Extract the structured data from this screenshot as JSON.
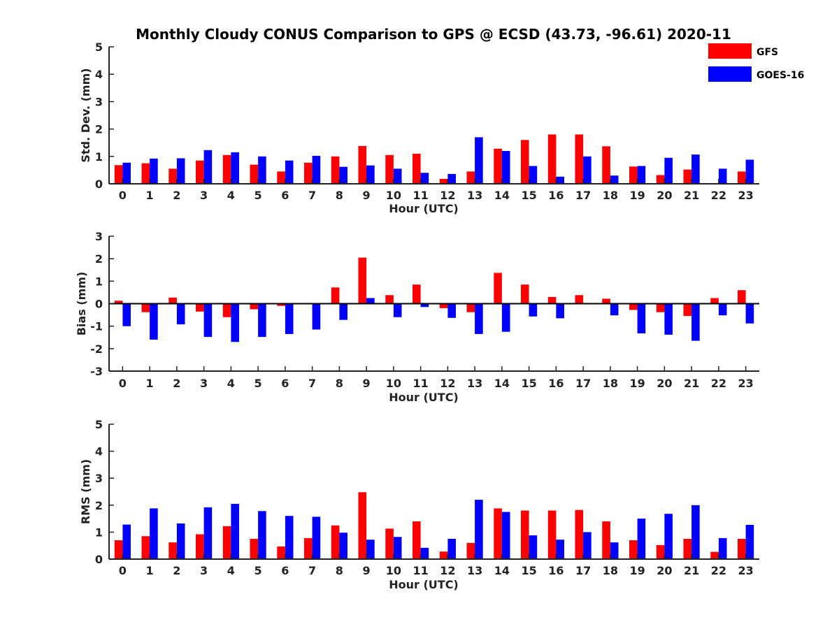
{
  "figure": {
    "title": "Monthly Cloudy CONUS Comparison to GPS @ ECSD (43.73, -96.61) 2020-11"
  },
  "legend": {
    "position": "top-right",
    "items": [
      {
        "label": "GFS",
        "color": "#ff0000"
      },
      {
        "label": "GOES-16",
        "color": "#0000ff"
      }
    ]
  },
  "chart_data": [
    {
      "type": "bar",
      "xlabel": "Hour (UTC)",
      "ylabel": "Std. Dev. (mm)",
      "ylim": [
        0,
        5
      ],
      "yticks": [
        0,
        1,
        2,
        3,
        4,
        5
      ],
      "categories": [
        "0",
        "1",
        "2",
        "3",
        "4",
        "5",
        "6",
        "7",
        "8",
        "9",
        "10",
        "11",
        "12",
        "13",
        "14",
        "15",
        "16",
        "17",
        "18",
        "19",
        "20",
        "21",
        "22",
        "23"
      ],
      "series": [
        {
          "name": "GFS",
          "color": "#ff0000",
          "values": [
            0.68,
            0.75,
            0.55,
            0.85,
            1.05,
            0.7,
            0.45,
            0.77,
            1.0,
            1.38,
            1.05,
            1.1,
            0.18,
            0.45,
            1.28,
            1.6,
            1.8,
            1.8,
            1.37,
            0.63,
            0.32,
            0.52,
            0.02,
            0.45
          ]
        },
        {
          "name": "GOES-16",
          "color": "#0000ff",
          "values": [
            0.77,
            0.92,
            0.93,
            1.23,
            1.15,
            1.0,
            0.85,
            1.02,
            0.62,
            0.67,
            0.55,
            0.4,
            0.36,
            1.7,
            1.2,
            0.65,
            0.26,
            1.0,
            0.3,
            0.65,
            0.95,
            1.07,
            0.55,
            0.88
          ]
        }
      ]
    },
    {
      "type": "bar",
      "xlabel": "Hour (UTC)",
      "ylabel": "Bias (mm)",
      "ylim": [
        -3,
        3
      ],
      "yticks": [
        -3,
        -2,
        -1,
        0,
        1,
        2,
        3
      ],
      "categories": [
        "0",
        "1",
        "2",
        "3",
        "4",
        "5",
        "6",
        "7",
        "8",
        "9",
        "10",
        "11",
        "12",
        "13",
        "14",
        "15",
        "16",
        "17",
        "18",
        "19",
        "20",
        "21",
        "22",
        "23"
      ],
      "series": [
        {
          "name": "GFS",
          "color": "#ff0000",
          "values": [
            0.13,
            -0.38,
            0.27,
            -0.35,
            -0.6,
            -0.25,
            -0.1,
            0.03,
            0.72,
            2.05,
            0.38,
            0.85,
            -0.2,
            -0.38,
            1.37,
            0.85,
            0.3,
            0.38,
            0.22,
            -0.28,
            -0.38,
            -0.55,
            0.25,
            0.6
          ]
        },
        {
          "name": "GOES-16",
          "color": "#0000ff",
          "values": [
            -1.0,
            -1.6,
            -0.92,
            -1.48,
            -1.7,
            -1.48,
            -1.35,
            -1.15,
            -0.72,
            0.25,
            -0.6,
            -0.15,
            -0.63,
            -1.35,
            -1.25,
            -0.57,
            -0.65,
            0.02,
            -0.52,
            -1.32,
            -1.38,
            -1.65,
            -0.52,
            -0.88
          ]
        }
      ]
    },
    {
      "type": "bar",
      "xlabel": "Hour (UTC)",
      "ylabel": "RMS (mm)",
      "ylim": [
        0,
        5
      ],
      "yticks": [
        0,
        1,
        2,
        3,
        4,
        5
      ],
      "categories": [
        "0",
        "1",
        "2",
        "3",
        "4",
        "5",
        "6",
        "7",
        "8",
        "9",
        "10",
        "11",
        "12",
        "13",
        "14",
        "15",
        "16",
        "17",
        "18",
        "19",
        "20",
        "21",
        "22",
        "23"
      ],
      "series": [
        {
          "name": "GFS",
          "color": "#ff0000",
          "values": [
            0.7,
            0.85,
            0.62,
            0.92,
            1.22,
            0.75,
            0.47,
            0.78,
            1.25,
            2.48,
            1.13,
            1.4,
            0.28,
            0.6,
            1.88,
            1.8,
            1.8,
            1.82,
            1.4,
            0.7,
            0.52,
            0.75,
            0.27,
            0.75
          ]
        },
        {
          "name": "GOES-16",
          "color": "#0000ff",
          "values": [
            1.28,
            1.88,
            1.32,
            1.92,
            2.05,
            1.78,
            1.6,
            1.57,
            0.98,
            0.72,
            0.82,
            0.42,
            0.75,
            2.2,
            1.75,
            0.88,
            0.72,
            1.0,
            0.62,
            1.5,
            1.68,
            2.0,
            0.78,
            1.27
          ]
        }
      ]
    }
  ]
}
